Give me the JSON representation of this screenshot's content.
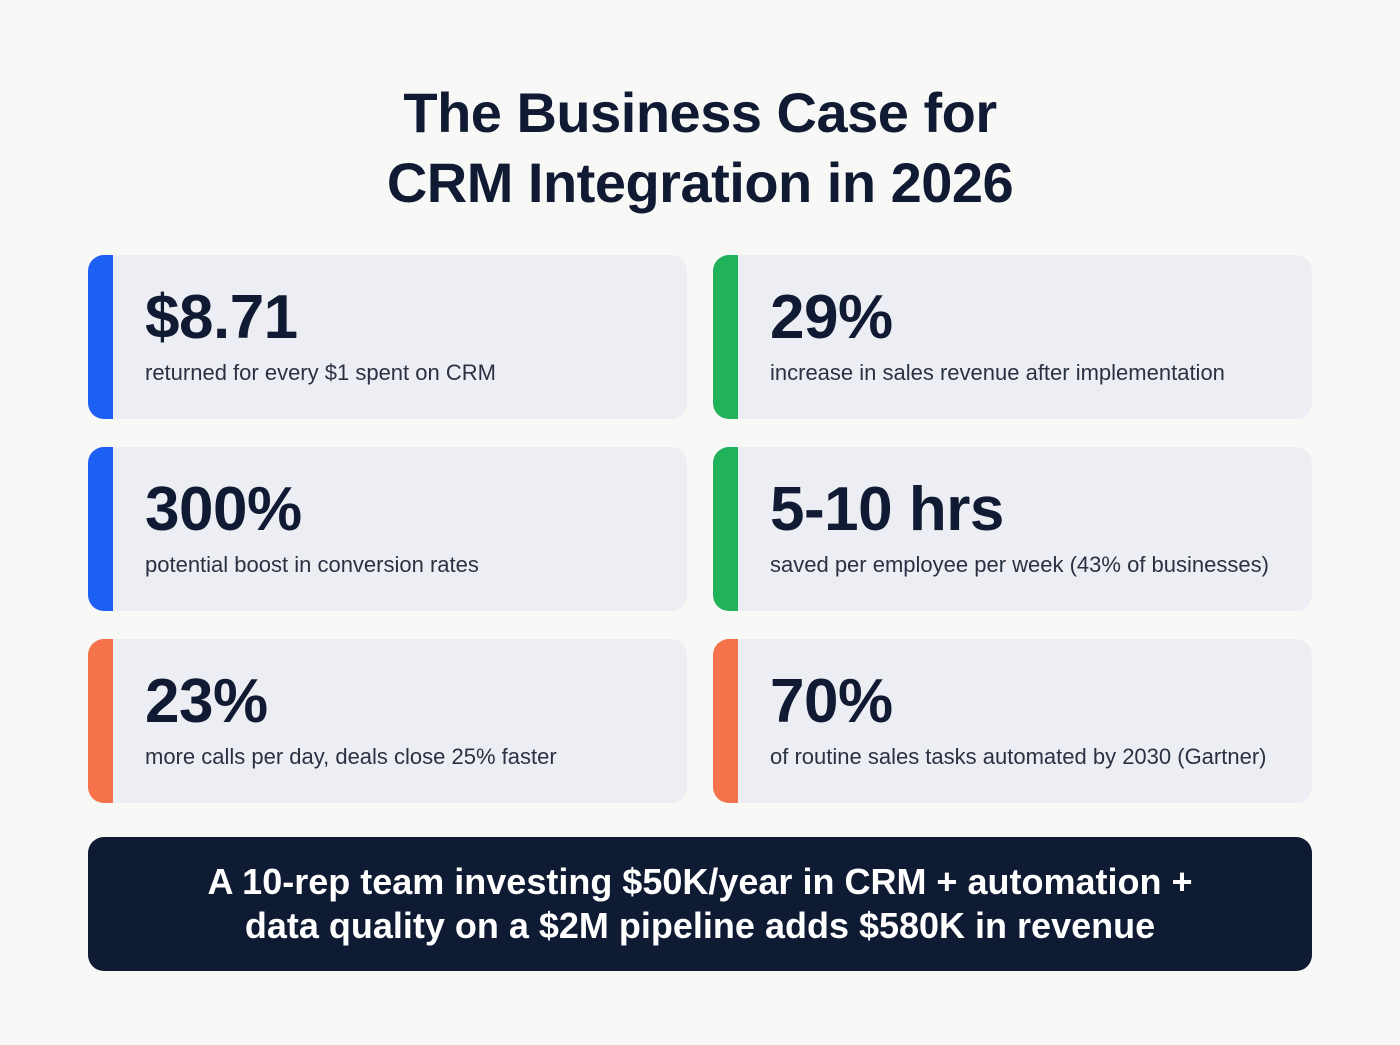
{
  "title": {
    "lines": [
      "The Business Case for",
      "CRM Integration in 2026"
    ]
  },
  "cards": [
    {
      "value": "$8.71",
      "description": "returned for every $1 spent on CRM",
      "accent": "#1d5ff5"
    },
    {
      "value": "29%",
      "description": "increase in sales revenue after implementation",
      "accent": "#22b35a"
    },
    {
      "value": "300%",
      "description": "potential boost in conversion rates",
      "accent": "#1d5ff5"
    },
    {
      "value": "5-10 hrs",
      "description": "saved per employee per week (43% of businesses)",
      "accent": "#22b35a"
    },
    {
      "value": "23%",
      "description": "more calls per day, deals close 25% faster",
      "accent": "#f4734a"
    },
    {
      "value": "70%",
      "description": "of routine sales tasks automated by 2030 (Gartner)",
      "accent": "#f4734a"
    }
  ],
  "footer": {
    "lines": [
      "A 10-rep team investing $50K/year in CRM + automation +",
      "data quality on a $2M pipeline adds $580K in revenue"
    ]
  }
}
